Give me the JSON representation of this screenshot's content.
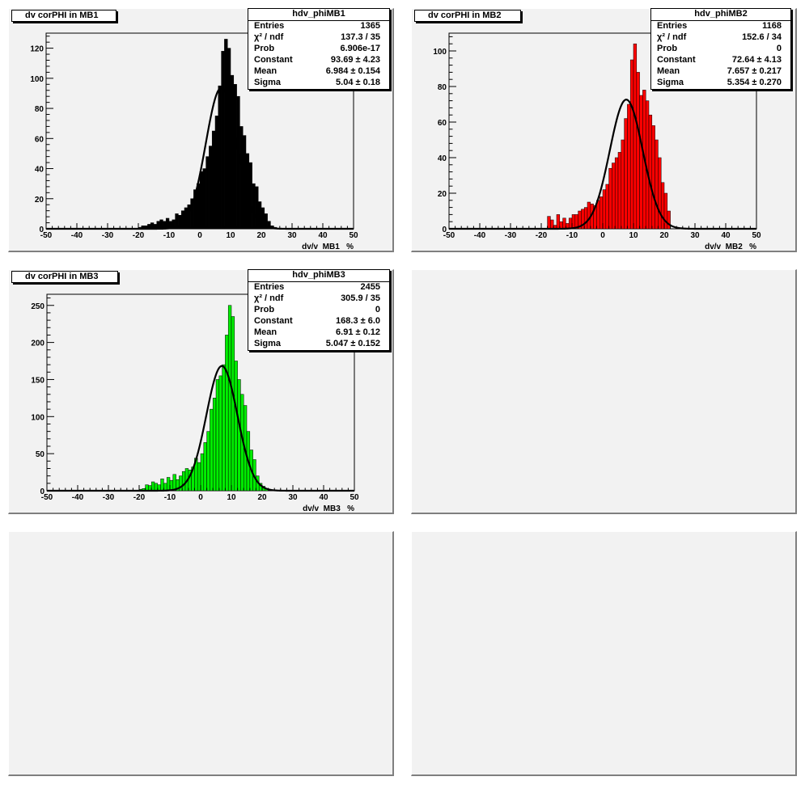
{
  "chart_data": [
    {
      "type": "bar",
      "title": "dv corPHI in MB1",
      "stats_title": "hdv_phiMB1",
      "xlabel": "dv/v  MB1   %",
      "xlim": [
        -50,
        50
      ],
      "ylim": [
        0,
        130
      ],
      "xticks": [
        -50,
        -40,
        -30,
        -20,
        -10,
        0,
        10,
        20,
        30,
        40,
        50
      ],
      "yticks": [
        0,
        20,
        40,
        60,
        80,
        100,
        120
      ],
      "fill": "#000000",
      "stats": [
        {
          "label": "Entries",
          "value": "1365"
        },
        {
          "label": "χ² / ndf",
          "value": "137.3 / 35"
        },
        {
          "label": "Prob",
          "value": "6.906e-17"
        },
        {
          "label": "Constant",
          "value": "93.69 ± 4.23"
        },
        {
          "label": "Mean",
          "value": "6.984 ± 0.154"
        },
        {
          "label": "Sigma",
          "value": "5.04 ± 0.18"
        }
      ],
      "fit": {
        "constant": 93.69,
        "mean": 6.984,
        "sigma": 5.04
      },
      "bin_width": 1,
      "bins_start": -20,
      "values": [
        1,
        2,
        2,
        3,
        4,
        3,
        5,
        6,
        5,
        7,
        5,
        6,
        10,
        9,
        12,
        14,
        16,
        20,
        26,
        30,
        38,
        40,
        48,
        55,
        65,
        75,
        95,
        118,
        126,
        120,
        102,
        96,
        88,
        68,
        62,
        50,
        44,
        30,
        28,
        18,
        14,
        10,
        5,
        2,
        1
      ]
    },
    {
      "type": "bar",
      "title": "dv corPHI in MB2",
      "stats_title": "hdv_phiMB2",
      "xlabel": "dv/v  MB2   %",
      "xlim": [
        -50,
        50
      ],
      "ylim": [
        0,
        110
      ],
      "xticks": [
        -50,
        -40,
        -30,
        -20,
        -10,
        0,
        10,
        20,
        30,
        40,
        50
      ],
      "yticks": [
        0,
        20,
        40,
        60,
        80,
        100
      ],
      "fill": "#ff0000",
      "stats": [
        {
          "label": "Entries",
          "value": "1168"
        },
        {
          "label": "χ² / ndf",
          "value": "152.6 / 34"
        },
        {
          "label": "Prob",
          "value": "0"
        },
        {
          "label": "Constant",
          "value": "72.64 ± 4.13"
        },
        {
          "label": "Mean",
          "value": "7.657 ± 0.217"
        },
        {
          "label": "Sigma",
          "value": "5.354 ± 0.270"
        }
      ],
      "fit": {
        "constant": 72.64,
        "mean": 7.657,
        "sigma": 5.354
      },
      "bin_width": 1,
      "bins_start": -18,
      "values": [
        7,
        5,
        2,
        8,
        4,
        6,
        3,
        6,
        8,
        8,
        10,
        11,
        12,
        15,
        14,
        13,
        16,
        18,
        22,
        25,
        34,
        37,
        40,
        43,
        50,
        62,
        70,
        95,
        104,
        88,
        75,
        78,
        72,
        64,
        58,
        50,
        40,
        26,
        20,
        10
      ]
    },
    {
      "type": "bar",
      "title": "dv corPHI in MB3",
      "stats_title": "hdv_phiMB3",
      "xlabel": "dv/v  MB3   %",
      "xlim": [
        -50,
        50
      ],
      "ylim": [
        0,
        265
      ],
      "xticks": [
        -50,
        -40,
        -30,
        -20,
        -10,
        0,
        10,
        20,
        30,
        40,
        50
      ],
      "yticks": [
        0,
        50,
        100,
        150,
        200,
        250
      ],
      "fill": "#00ee00",
      "stats": [
        {
          "label": "Entries",
          "value": "2455"
        },
        {
          "label": "χ² / ndf",
          "value": "305.9 / 35"
        },
        {
          "label": "Prob",
          "value": "0"
        },
        {
          "label": "Constant",
          "value": "168.3 ± 6.0"
        },
        {
          "label": "Mean",
          "value": "6.91 ± 0.12"
        },
        {
          "label": "Sigma",
          "value": "5.047 ± 0.152"
        }
      ],
      "fit": {
        "constant": 168.3,
        "mean": 6.91,
        "sigma": 5.047
      },
      "bin_width": 1,
      "bins_start": -20,
      "values": [
        2,
        3,
        8,
        7,
        12,
        10,
        8,
        16,
        10,
        18,
        14,
        22,
        15,
        20,
        26,
        30,
        28,
        32,
        44,
        38,
        50,
        65,
        80,
        110,
        125,
        150,
        155,
        170,
        210,
        250,
        235,
        175,
        150,
        130,
        115,
        80,
        55,
        42,
        20,
        10,
        6,
        3
      ]
    }
  ]
}
